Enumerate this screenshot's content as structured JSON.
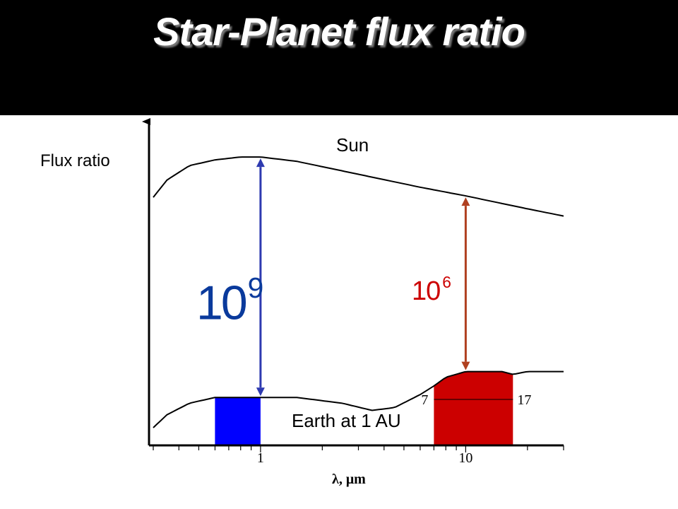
{
  "slide": {
    "title": "Star-Planet flux ratio"
  },
  "chart_data": {
    "type": "line",
    "ylabel": "Flux ratio",
    "xlabel": "λ, μm",
    "x_scale": "log",
    "xlim": [
      0.3,
      30
    ],
    "x_ticks": [
      1,
      10
    ],
    "x_tick_labels": [
      "1",
      "10"
    ],
    "series": [
      {
        "name": "Sun",
        "x": [
          0.3,
          0.35,
          0.45,
          0.6,
          0.8,
          1.0,
          1.5,
          3,
          6,
          10,
          20,
          30
        ],
        "y": [
          8.0,
          8.6,
          9.1,
          9.3,
          9.4,
          9.4,
          9.25,
          8.8,
          8.35,
          8.05,
          7.6,
          7.35
        ]
      },
      {
        "name": "Earth at 1 AU",
        "x": [
          0.3,
          0.35,
          0.45,
          0.6,
          0.8,
          1.0,
          1.5,
          2.5,
          3.5,
          4.5,
          6,
          7,
          8,
          10,
          12,
          15,
          17,
          20,
          30
        ],
        "y": [
          0.0,
          0.45,
          0.85,
          1.05,
          1.05,
          1.05,
          1.05,
          0.85,
          0.6,
          0.7,
          1.15,
          1.45,
          1.75,
          1.95,
          1.95,
          1.95,
          1.85,
          1.95,
          1.95
        ]
      }
    ],
    "shaded_bands": [
      {
        "from": 0.6,
        "to": 1.0,
        "color": "#0000ff"
      },
      {
        "from": 7,
        "to": 17,
        "color": "#cc0000",
        "labels": [
          "7",
          "17"
        ]
      }
    ],
    "annotations": [
      {
        "x": 1.0,
        "base": "10",
        "exponent": "9",
        "color": "#2e3ab0",
        "text_color": "#0a3a9c"
      },
      {
        "x": 10,
        "base": "10",
        "exponent": "6",
        "color": "#b04020",
        "text_color": "#cc0000"
      }
    ]
  }
}
